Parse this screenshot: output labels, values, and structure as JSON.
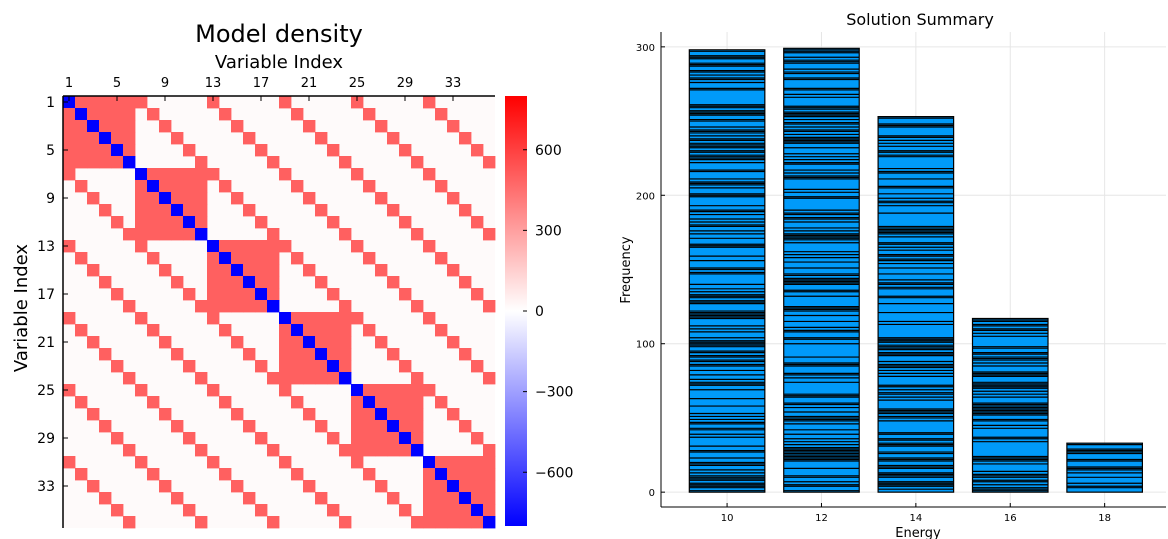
{
  "chart_data": [
    {
      "type": "heatmap",
      "title": "Model density",
      "xlabel": "Variable Index",
      "ylabel": "Variable Index",
      "n": 36,
      "x_ticks": [
        "1",
        "5",
        "9",
        "13",
        "17",
        "21",
        "25",
        "29",
        "33"
      ],
      "y_ticks": [
        "1",
        "5",
        "9",
        "13",
        "17",
        "21",
        "25",
        "29",
        "33"
      ],
      "diagonal_value": -800,
      "offdiagonal_value": 500,
      "block_size": 6,
      "diagonal_offsets": [
        6,
        12,
        18,
        24,
        30
      ],
      "colorbar": {
        "range": [
          -800,
          800
        ],
        "ticks": [
          "600",
          "300",
          "0",
          "−300",
          "−600"
        ],
        "tick_values": [
          600,
          300,
          0,
          -300,
          -600
        ],
        "colors": [
          "#0000ff",
          "#ffffff",
          "#ff0000"
        ]
      }
    },
    {
      "type": "bar",
      "title": "Solution Summary",
      "xlabel": "Energy",
      "ylabel": "Frequency",
      "categories": [
        10,
        12,
        14,
        16,
        18
      ],
      "x_ticks": [
        "10",
        "12",
        "14",
        "16",
        "18"
      ],
      "values": [
        298,
        299,
        253,
        117,
        33
      ],
      "y_ticks": [
        "0",
        "100",
        "200",
        "300"
      ],
      "y_tick_values": [
        0,
        100,
        200,
        300
      ],
      "xlim": [
        8.6,
        19.3
      ],
      "ylim": [
        -10,
        310
      ],
      "bar_color": "#009af9",
      "bar_width": 1.6,
      "grid": true
    }
  ]
}
